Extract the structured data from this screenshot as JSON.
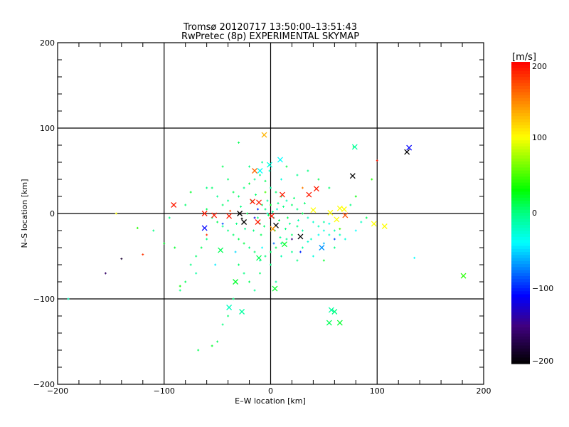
{
  "chart_data": {
    "type": "scatter",
    "title": "Tromsø 20120717 13:50:00–13:51:43",
    "subtitle": "RwPretec (8p) EXPERIMENTAL SKYMAP",
    "xlabel": "E–W location [km]",
    "ylabel": "N–S location [km]",
    "xlim": [
      -200,
      200
    ],
    "ylim": [
      -200,
      200
    ],
    "xticks": [
      "−200",
      "−100",
      "0",
      "100",
      "200"
    ],
    "yticks": [
      "200",
      "100",
      "0",
      "−100",
      "−200"
    ],
    "xtick_values": [
      -200,
      -100,
      0,
      100,
      200
    ],
    "ytick_values": [
      200,
      100,
      0,
      -100,
      -200
    ],
    "grid": true,
    "colorbar": {
      "label": "[m/s]",
      "range": [
        -200,
        200
      ],
      "ticks": [
        "200",
        "100",
        "0",
        "−100",
        "−200"
      ],
      "tick_values": [
        200,
        100,
        0,
        -100,
        -200
      ],
      "stops": [
        {
          "v": -200,
          "color": "#000000"
        },
        {
          "v": -150,
          "color": "#400080"
        },
        {
          "v": -110,
          "color": "#0000ff"
        },
        {
          "v": -40,
          "color": "#00ffff"
        },
        {
          "v": 0,
          "color": "#00ff80"
        },
        {
          "v": 30,
          "color": "#00ff00"
        },
        {
          "v": 100,
          "color": "#ffff00"
        },
        {
          "v": 150,
          "color": "#ff8000"
        },
        {
          "v": 200,
          "color": "#ff0000"
        }
      ]
    },
    "series": [
      {
        "name": "crosses",
        "marker": "x",
        "points": [
          [
            -6,
            92,
            130
          ],
          [
            130,
            77,
            -110
          ],
          [
            128,
            72,
            -200
          ],
          [
            77,
            44,
            -200
          ],
          [
            79,
            78,
            -10
          ],
          [
            -91,
            10,
            190
          ],
          [
            -62,
            0,
            190
          ],
          [
            -53,
            -2,
            190
          ],
          [
            -39,
            -3,
            190
          ],
          [
            -29,
            0,
            -200
          ],
          [
            -25,
            -10,
            -200
          ],
          [
            -15,
            50,
            160
          ],
          [
            -10,
            50,
            -40
          ],
          [
            9,
            63,
            -40
          ],
          [
            -1,
            57,
            -30
          ],
          [
            43,
            29,
            190
          ],
          [
            36,
            22,
            190
          ],
          [
            11,
            22,
            190
          ],
          [
            -17,
            14,
            190
          ],
          [
            -11,
            13,
            190
          ],
          [
            -12,
            -10,
            190
          ],
          [
            1,
            -3,
            190
          ],
          [
            5,
            -14,
            -200
          ],
          [
            -62,
            -17,
            -110
          ],
          [
            40,
            4,
            100
          ],
          [
            56,
            1,
            100
          ],
          [
            65,
            6,
            100
          ],
          [
            69,
            5,
            100
          ],
          [
            70,
            -2,
            170
          ],
          [
            62,
            -7,
            100
          ],
          [
            28,
            -27,
            -200
          ],
          [
            48,
            -40,
            -70
          ],
          [
            13,
            -36,
            20
          ],
          [
            -47,
            -43,
            10
          ],
          [
            -11,
            -52,
            10
          ],
          [
            2,
            -18,
            140
          ],
          [
            97,
            -12,
            100
          ],
          [
            107,
            -15,
            100
          ],
          [
            181,
            -73,
            40
          ],
          [
            4,
            -88,
            20
          ],
          [
            -33,
            -80,
            20
          ],
          [
            -39,
            -110,
            -20
          ],
          [
            -27,
            -115,
            -10
          ],
          [
            57,
            -113,
            -10
          ],
          [
            60,
            -115,
            0
          ],
          [
            55,
            -128,
            10
          ],
          [
            65,
            -128,
            20
          ]
        ]
      },
      {
        "name": "points",
        "marker": "+",
        "points": [
          [
            -35,
            25,
            10
          ],
          [
            -30,
            20,
            5
          ],
          [
            -25,
            30,
            0
          ],
          [
            -20,
            35,
            15
          ],
          [
            -15,
            40,
            -5
          ],
          [
            -10,
            45,
            0
          ],
          [
            -5,
            38,
            10
          ],
          [
            0,
            30,
            -10
          ],
          [
            5,
            25,
            5
          ],
          [
            10,
            20,
            0
          ],
          [
            15,
            15,
            -15
          ],
          [
            20,
            10,
            5
          ],
          [
            25,
            5,
            0
          ],
          [
            30,
            0,
            10
          ],
          [
            35,
            -5,
            -20
          ],
          [
            40,
            -10,
            -25
          ],
          [
            45,
            -15,
            -20
          ],
          [
            50,
            -20,
            -30
          ],
          [
            55,
            -25,
            -25
          ],
          [
            60,
            -20,
            -15
          ],
          [
            65,
            -25,
            -20
          ],
          [
            70,
            -30,
            -30
          ],
          [
            50,
            -10,
            -10
          ],
          [
            45,
            -25,
            -35
          ],
          [
            38,
            -30,
            -20
          ],
          [
            30,
            -20,
            -10
          ],
          [
            25,
            -15,
            0
          ],
          [
            20,
            -25,
            5
          ],
          [
            15,
            -30,
            -5
          ],
          [
            10,
            -35,
            0
          ],
          [
            5,
            -40,
            10
          ],
          [
            0,
            -45,
            5
          ],
          [
            -5,
            -50,
            0
          ],
          [
            -10,
            -55,
            -10
          ],
          [
            -15,
            -45,
            5
          ],
          [
            -20,
            -40,
            0
          ],
          [
            -25,
            -35,
            15
          ],
          [
            -30,
            -30,
            10
          ],
          [
            -35,
            -25,
            5
          ],
          [
            -40,
            -20,
            0
          ],
          [
            -45,
            -15,
            -5
          ],
          [
            -50,
            -10,
            10
          ],
          [
            -55,
            -5,
            0
          ],
          [
            -60,
            5,
            10
          ],
          [
            -45,
            10,
            5
          ],
          [
            -40,
            15,
            0
          ],
          [
            -50,
            20,
            -5
          ],
          [
            -55,
            30,
            5
          ],
          [
            -60,
            -30,
            0
          ],
          [
            -65,
            -40,
            10
          ],
          [
            -70,
            -50,
            5
          ],
          [
            -75,
            -60,
            0
          ],
          [
            -80,
            -80,
            10
          ],
          [
            -85,
            -90,
            0
          ],
          [
            -90,
            -40,
            20
          ],
          [
            -70,
            -70,
            -10
          ],
          [
            -30,
            -60,
            5
          ],
          [
            -25,
            -70,
            0
          ],
          [
            -20,
            -80,
            10
          ],
          [
            -15,
            -90,
            -5
          ],
          [
            -35,
            -100,
            0
          ],
          [
            -40,
            -120,
            5
          ],
          [
            -45,
            -130,
            0
          ],
          [
            -50,
            -150,
            10
          ],
          [
            -55,
            -155,
            20
          ],
          [
            -10,
            -70,
            5
          ],
          [
            0,
            -60,
            0
          ],
          [
            5,
            -80,
            -10
          ],
          [
            10,
            -50,
            -15
          ],
          [
            20,
            -45,
            -5
          ],
          [
            25,
            -55,
            0
          ],
          [
            30,
            -40,
            -10
          ],
          [
            60,
            -40,
            0
          ],
          [
            -5,
            5,
            0
          ],
          [
            -2,
            -2,
            10
          ],
          [
            2,
            2,
            -5
          ],
          [
            -8,
            10,
            5
          ],
          [
            -12,
            -5,
            0
          ],
          [
            8,
            -8,
            15
          ],
          [
            -18,
            15,
            -10
          ],
          [
            12,
            8,
            0
          ],
          [
            -6,
            -15,
            5
          ],
          [
            4,
            -20,
            0
          ],
          [
            -22,
            0,
            10
          ],
          [
            18,
            -12,
            -5
          ],
          [
            -28,
            8,
            0
          ],
          [
            22,
            18,
            5
          ],
          [
            -3,
            15,
            -10
          ],
          [
            7,
            12,
            0
          ],
          [
            -14,
            22,
            5
          ],
          [
            14,
            -18,
            0
          ],
          [
            -9,
            -25,
            10
          ],
          [
            9,
            -28,
            -5
          ],
          [
            -32,
            -12,
            0
          ],
          [
            32,
            12,
            5
          ],
          [
            -1,
            50,
            -20
          ],
          [
            -8,
            60,
            -10
          ],
          [
            -20,
            55,
            0
          ],
          [
            -40,
            40,
            5
          ],
          [
            -45,
            55,
            10
          ],
          [
            -30,
            83,
            10
          ],
          [
            -60,
            30,
            0
          ],
          [
            -75,
            25,
            20
          ],
          [
            -80,
            10,
            5
          ],
          [
            -95,
            -5,
            0
          ],
          [
            -100,
            -35,
            20
          ],
          [
            -110,
            -20,
            0
          ],
          [
            -125,
            -17,
            40
          ],
          [
            -145,
            0,
            100
          ],
          [
            -120,
            -48,
            180
          ],
          [
            -140,
            -53,
            -180
          ],
          [
            -155,
            -70,
            -160
          ],
          [
            -190,
            -100,
            -20
          ],
          [
            -68,
            -160,
            10
          ],
          [
            -85,
            -85,
            30
          ],
          [
            80,
            -20,
            -40
          ],
          [
            85,
            -10,
            -20
          ],
          [
            90,
            -5,
            10
          ],
          [
            75,
            10,
            0
          ],
          [
            80,
            20,
            30
          ],
          [
            95,
            40,
            40
          ],
          [
            100,
            62,
            190
          ],
          [
            135,
            -52,
            -40
          ],
          [
            78,
            78,
            20
          ],
          [
            55,
            30,
            5
          ],
          [
            45,
            40,
            10
          ],
          [
            35,
            50,
            0
          ],
          [
            25,
            45,
            -5
          ],
          [
            15,
            55,
            15
          ],
          [
            -38,
            3,
            170
          ],
          [
            -27,
            -6,
            -200
          ],
          [
            -15,
            -5,
            -120
          ],
          [
            -12,
            5,
            -100
          ],
          [
            -45,
            -12,
            -90
          ],
          [
            -60,
            -25,
            180
          ],
          [
            20,
            -30,
            -150
          ],
          [
            -5,
            25,
            50
          ],
          [
            30,
            30,
            150
          ],
          [
            3,
            -35,
            -80
          ],
          [
            60,
            -30,
            -90
          ],
          [
            28,
            -45,
            -100
          ],
          [
            50,
            -55,
            20
          ],
          [
            65,
            -18,
            50
          ],
          [
            10,
            40,
            -30
          ],
          [
            -8,
            -40,
            -40
          ],
          [
            40,
            -50,
            -30
          ],
          [
            -52,
            -60,
            -45
          ],
          [
            -33,
            -45,
            -50
          ],
          [
            50,
            -35,
            -60
          ],
          [
            35,
            -33,
            -25
          ],
          [
            55,
            -12,
            -35
          ],
          [
            -3,
            0,
            -20
          ],
          [
            3,
            -5,
            -30
          ],
          [
            -10,
            -12,
            -15
          ],
          [
            6,
            5,
            -25
          ],
          [
            -16,
            -20,
            0
          ],
          [
            16,
            -5,
            10
          ],
          [
            -24,
            -18,
            -5
          ],
          [
            26,
            -8,
            -15
          ],
          [
            0,
            10,
            20
          ]
        ]
      }
    ]
  }
}
